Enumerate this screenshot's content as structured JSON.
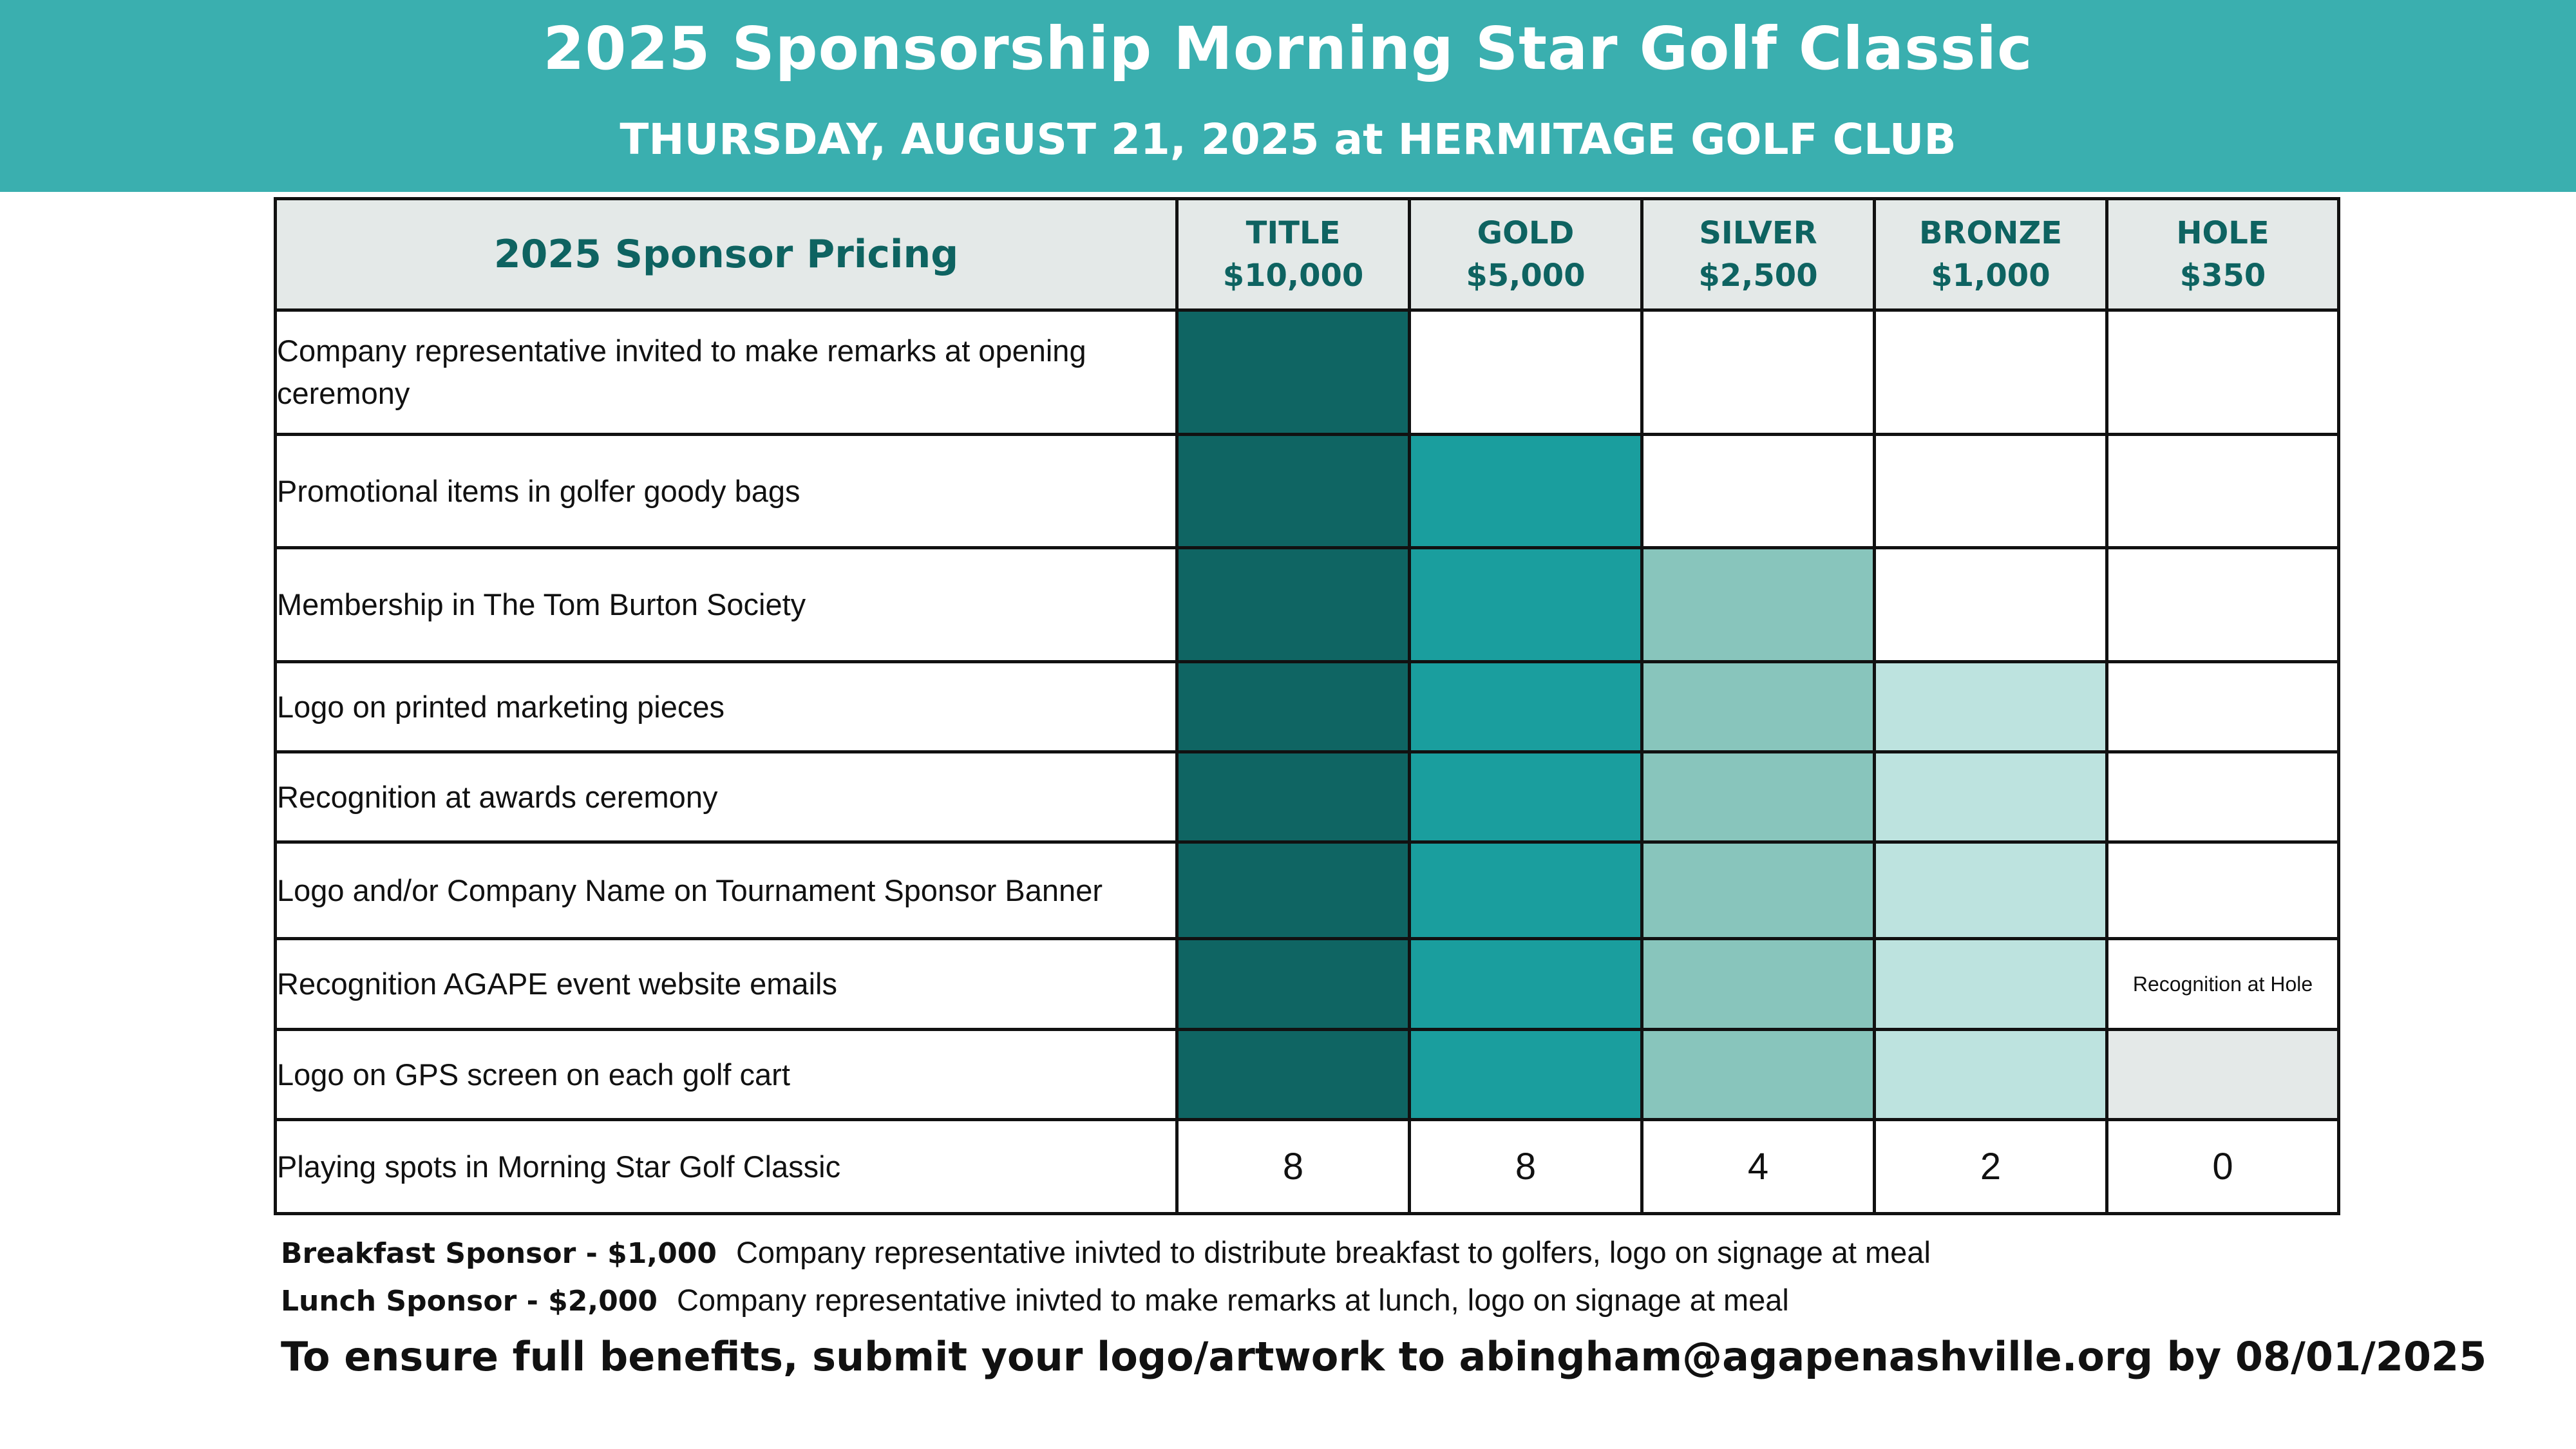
{
  "header": {
    "title": "2025 Sponsorship Morning Star Golf Classic",
    "subtitle": "THURSDAY, AUGUST 21, 2025 at HERMITAGE GOLF CLUB"
  },
  "table": {
    "corner_label": "2025 Sponsor Pricing",
    "tiers": [
      {
        "name": "TITLE",
        "price": "$10,000"
      },
      {
        "name": "GOLD",
        "price": "$5,000"
      },
      {
        "name": "SILVER",
        "price": "$2,500"
      },
      {
        "name": "BRONZE",
        "price": "$1,000"
      },
      {
        "name": "HOLE",
        "price": "$350"
      }
    ],
    "rows": [
      {
        "benefit": "Company representative invited to make remarks at opening ceremony"
      },
      {
        "benefit": "Promotional items in golfer goody bags"
      },
      {
        "benefit": "Membership in The Tom Burton Society"
      },
      {
        "benefit": "Logo on printed marketing pieces"
      },
      {
        "benefit": "Recognition at awards ceremony"
      },
      {
        "benefit": "Logo and/or Company Name on Tournament Sponsor Banner"
      },
      {
        "benefit": "Recognition AGAPE event website emails",
        "hole_note": "Recognition at Hole"
      },
      {
        "benefit": "Logo on GPS screen on each golf cart"
      },
      {
        "benefit": "Playing spots in Morning Star Golf Classic",
        "values": [
          "8",
          "8",
          "4",
          "2",
          "0"
        ]
      }
    ],
    "tier_colors": [
      "#0f6563",
      "#1a9e9e",
      "#88c5bc",
      "#bde3df",
      "#e4e9e8"
    ]
  },
  "addons": [
    {
      "name": "Breakfast Sponsor - $1,000",
      "description": "Company representative inivted to distribute breakfast to golfers, logo on signage at meal"
    },
    {
      "name": "Lunch Sponsor - $2,000",
      "description": "Company representative inivted to make remarks at lunch, logo on signage at meal"
    }
  ],
  "cta": "To ensure full benefits, submit your logo/artwork to abingham@agapenashville.org by 08/01/2025",
  "colors": {
    "header_bg": "#3aafaf",
    "header_text": "#ffffff",
    "label_text": "#0e6361"
  }
}
